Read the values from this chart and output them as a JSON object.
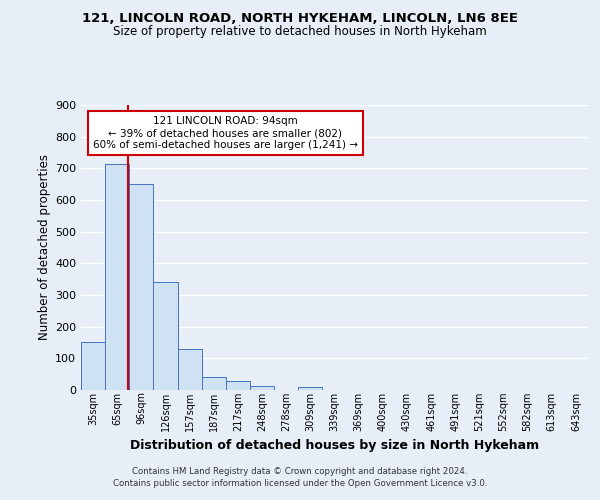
{
  "title1": "121, LINCOLN ROAD, NORTH HYKEHAM, LINCOLN, LN6 8EE",
  "title2": "Size of property relative to detached houses in North Hykeham",
  "xlabel": "Distribution of detached houses by size in North Hykeham",
  "ylabel": "Number of detached properties",
  "bin_labels": [
    "35sqm",
    "65sqm",
    "96sqm",
    "126sqm",
    "157sqm",
    "187sqm",
    "217sqm",
    "248sqm",
    "278sqm",
    "309sqm",
    "339sqm",
    "369sqm",
    "400sqm",
    "430sqm",
    "461sqm",
    "491sqm",
    "521sqm",
    "552sqm",
    "582sqm",
    "613sqm",
    "643sqm"
  ],
  "bar_heights": [
    152,
    715,
    650,
    340,
    130,
    42,
    30,
    12,
    0,
    8,
    0,
    0,
    0,
    0,
    0,
    0,
    0,
    0,
    0,
    0,
    0
  ],
  "bar_color": "#cfe2f3",
  "bar_edge_color": "#4472c4",
  "vline_color": "#cc0000",
  "annotation_text": "121 LINCOLN ROAD: 94sqm\n← 39% of detached houses are smaller (802)\n60% of semi-detached houses are larger (1,241) →",
  "annotation_box_color": "#ffffff",
  "annotation_edge_color": "#cc0000",
  "ylim": [
    0,
    900
  ],
  "yticks": [
    0,
    100,
    200,
    300,
    400,
    500,
    600,
    700,
    800,
    900
  ],
  "footer1": "Contains HM Land Registry data © Crown copyright and database right 2024.",
  "footer2": "Contains public sector information licensed under the Open Government Licence v3.0.",
  "bg_color": "#e8eef8",
  "grid_color": "#ffffff"
}
